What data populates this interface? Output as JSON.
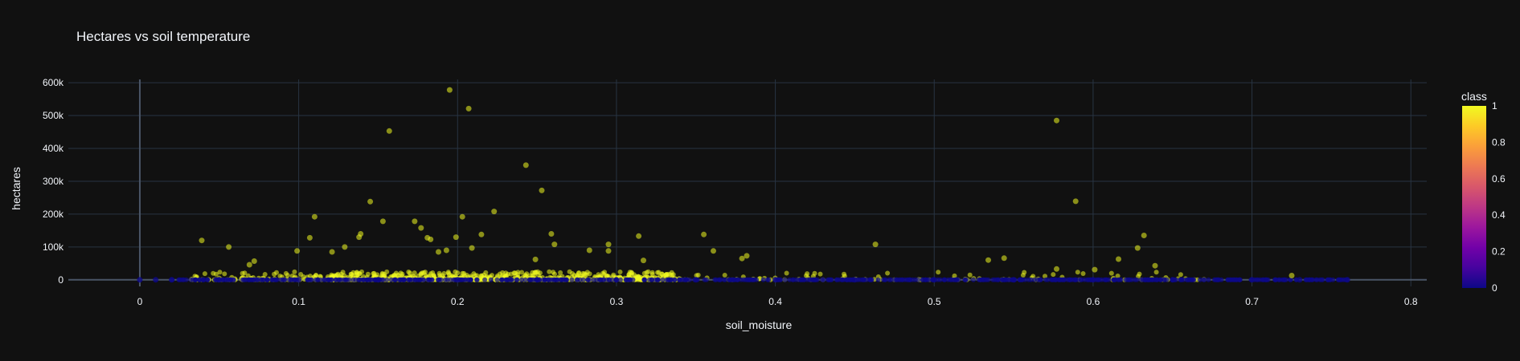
{
  "chart_data": {
    "type": "scatter",
    "title": "Hectares vs soil temperature",
    "xlabel": "soil_moisture",
    "ylabel": "hectares",
    "xlim": [
      -0.045,
      0.81
    ],
    "ylim": [
      -20000,
      610000
    ],
    "x_ticks": [
      0,
      0.1,
      0.2,
      0.3,
      0.4,
      0.5,
      0.6,
      0.7,
      0.8
    ],
    "x_tick_labels": [
      "0",
      "0.1",
      "0.2",
      "0.3",
      "0.4",
      "0.5",
      "0.6",
      "0.7",
      "0.8"
    ],
    "y_ticks": [
      0,
      100000,
      200000,
      300000,
      400000,
      500000,
      600000
    ],
    "y_tick_labels": [
      "0",
      "100k",
      "200k",
      "300k",
      "400k",
      "500k",
      "600k"
    ],
    "grid": true,
    "colorbar": {
      "title": "class",
      "ticks": [
        0,
        0.2,
        0.4,
        0.6,
        0.8,
        1
      ],
      "tick_labels": [
        "0",
        "0.2",
        "0.4",
        "0.6",
        "0.8",
        "1"
      ],
      "colors": [
        "#0d0887",
        "#46039f",
        "#7201a8",
        "#9c179e",
        "#bd3786",
        "#d8576b",
        "#ed7953",
        "#fb9f3a",
        "#fdca26",
        "#f0f921"
      ]
    },
    "series": [
      {
        "class": 1,
        "color": "#f0f921",
        "x": [
          0.195,
          0.207,
          0.577,
          0.157,
          0.243,
          0.253,
          0.589,
          0.145,
          0.223,
          0.11,
          0.203,
          0.153,
          0.173,
          0.139,
          0.215,
          0.177,
          0.259,
          0.181,
          0.183,
          0.632,
          0.355,
          0.261,
          0.314,
          0.039,
          0.138,
          0.199,
          0.107,
          0.209,
          0.129,
          0.193,
          0.463,
          0.056,
          0.295,
          0.628,
          0.188,
          0.361,
          0.099,
          0.121,
          0.295,
          0.283,
          0.382,
          0.072,
          0.544,
          0.534,
          0.616,
          0.317,
          0.379,
          0.639,
          0.069,
          0.249,
          0.577,
          0.725,
          0.601
        ],
        "y": [
          578000,
          521000,
          485000,
          453000,
          349000,
          272000,
          239000,
          238000,
          208000,
          192000,
          192000,
          178000,
          178000,
          140000,
          138000,
          158000,
          140000,
          128000,
          123000,
          135000,
          138000,
          108000,
          133000,
          120000,
          130000,
          130000,
          128000,
          97000,
          100000,
          90000,
          108000,
          100000,
          108000,
          97000,
          85000,
          88000,
          88000,
          85000,
          88000,
          90000,
          73000,
          57000,
          66000,
          60000,
          63000,
          59000,
          65000,
          43000,
          46000,
          62000,
          33000,
          13000,
          31000
        ]
      },
      {
        "class": 0,
        "color": "#0d0887",
        "x": [
          0.0,
          0.01,
          0.02,
          0.05,
          0.1,
          0.15,
          0.2,
          0.25,
          0.3,
          0.35,
          0.4,
          0.45,
          0.5,
          0.55,
          0.6,
          0.65,
          0.7,
          0.73,
          0.76
        ],
        "y": [
          0,
          0,
          0,
          0,
          0,
          0,
          0,
          0,
          0,
          0,
          0,
          0,
          0,
          0,
          0,
          0,
          0,
          0,
          0
        ]
      }
    ]
  }
}
